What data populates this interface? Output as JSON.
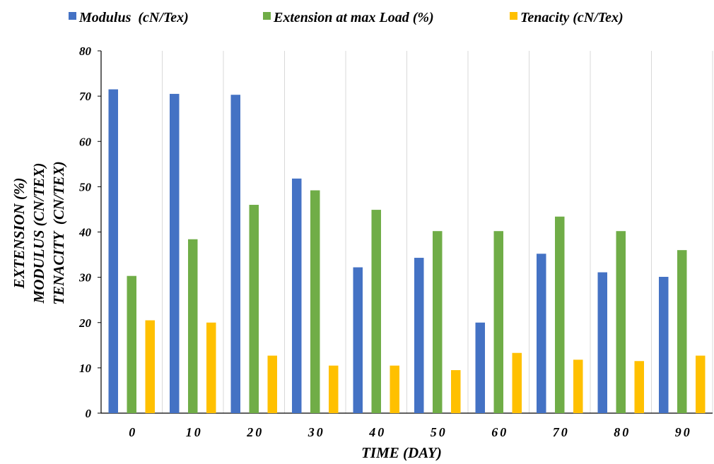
{
  "chart_data": {
    "type": "bar",
    "categories": [
      "0",
      "10",
      "20",
      "30",
      "40",
      "50",
      "60",
      "70",
      "80",
      "90"
    ],
    "series": [
      {
        "name": "Modulus  (cN/Tex)",
        "color": "#4472C4",
        "values": [
          71.5,
          70.5,
          70.3,
          51.8,
          32.2,
          34.3,
          20.0,
          35.2,
          31.1,
          30.1
        ]
      },
      {
        "name": "Extension at max Load (%)",
        "color": "#70AD47",
        "values": [
          30.3,
          38.4,
          46.0,
          49.2,
          44.9,
          40.2,
          40.2,
          43.4,
          40.2,
          36.0
        ]
      },
      {
        "name": "Tenacity (cN/Tex)",
        "color": "#FFC000",
        "values": [
          20.5,
          20.0,
          12.7,
          10.5,
          10.5,
          9.5,
          13.3,
          11.8,
          11.5,
          12.7
        ]
      }
    ],
    "xlabel": "TIME (DAY)",
    "ylabel_lines": [
      "EXTENSION (%)",
      "MODULUS (CN/TEX)",
      "TENACITY  (CN/TEX)"
    ],
    "ylim": [
      0,
      80
    ],
    "yticks": [
      0,
      10,
      20,
      30,
      40,
      50,
      60,
      70,
      80
    ],
    "grid": "vertical",
    "legend_position": "top"
  }
}
